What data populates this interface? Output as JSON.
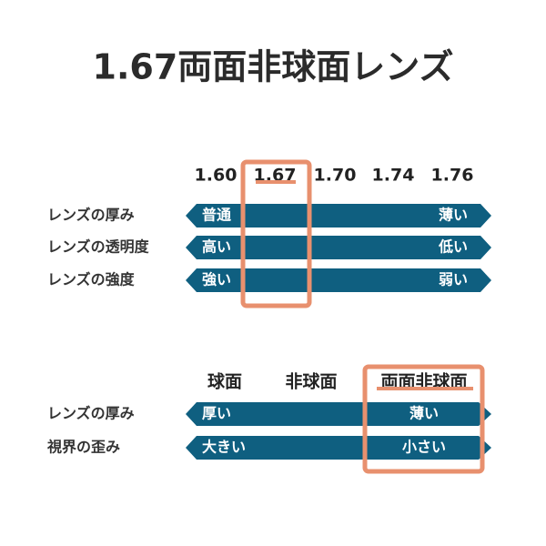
{
  "title": "1.67両面非球面レンズ",
  "index_section": {
    "columns": [
      "1.60",
      "1.67",
      "1.70",
      "1.74",
      "1.76"
    ],
    "rows": [
      {
        "label": "レンズの厚み",
        "left": "普通",
        "right": "薄い"
      },
      {
        "label": "レンズの透明度",
        "left": "高い",
        "right": "低い"
      },
      {
        "label": "レンズの強度",
        "left": "強い",
        "right": "弱い"
      }
    ]
  },
  "design_section": {
    "columns": [
      "球面",
      "非球面",
      "両面非球面"
    ],
    "rows": [
      {
        "label": "レンズの厚み",
        "left": "厚い",
        "center": "薄い"
      },
      {
        "label": "視界の歪み",
        "left": "大きい",
        "center": "小さい"
      }
    ]
  }
}
